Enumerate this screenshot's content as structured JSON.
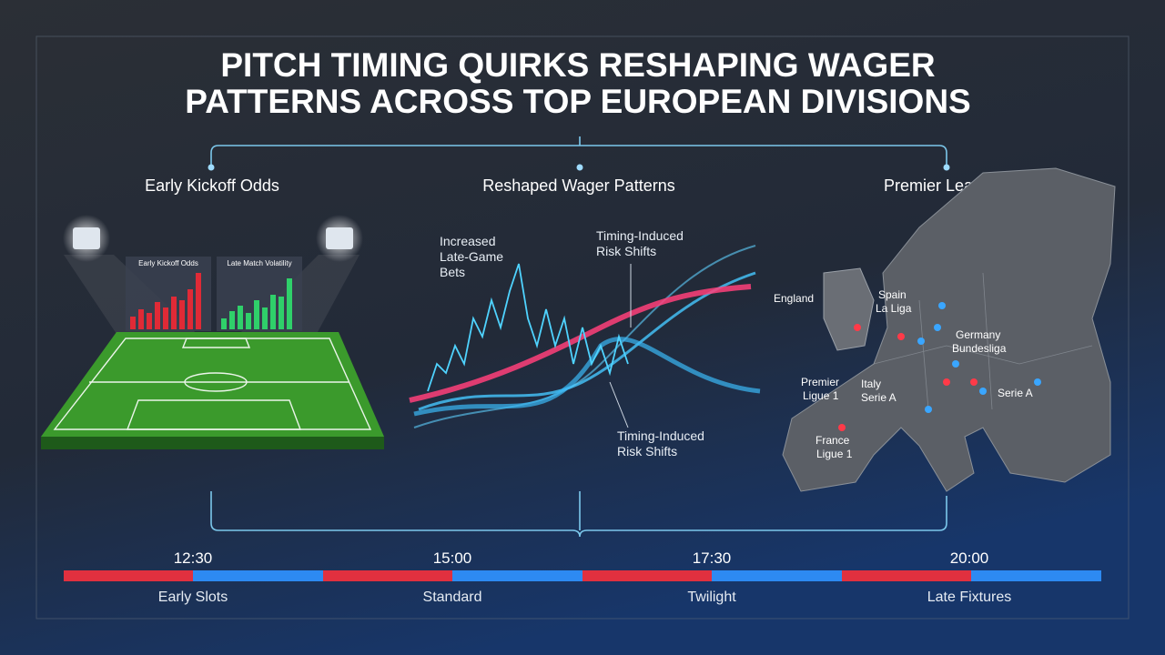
{
  "header": {
    "title_lines": [
      "PITCH TIMING QUIRKS RESHAPING WAGER",
      "PATTERNS ACROSS TOP EUROPEAN DIVISIONS"
    ]
  },
  "panels": [
    {
      "heading": "Early Kickoff Odds",
      "screens": [
        "Early Kickoff Odds",
        "Late Match Volatility"
      ]
    },
    {
      "heading": "Reshaped Wager Patterns",
      "labels": [
        [
          "Increased",
          "Late-Game",
          "Bets"
        ],
        [
          "Timing-Induced",
          "Risk Shifts"
        ],
        [
          "Timing-Induced",
          "Risk Shifts"
        ]
      ]
    },
    {
      "heading": "Premier League",
      "labels": [
        [
          "England"
        ],
        [
          "Spain",
          "La Liga"
        ],
        [
          "Germany",
          "Bundesliga"
        ],
        [
          "Premier",
          "Ligue 1"
        ],
        [
          "Italy",
          "Serie A"
        ],
        [
          "Serie A"
        ],
        [
          "France",
          "Ligue 1"
        ]
      ]
    }
  ],
  "timeline": {
    "times": [
      "12:30",
      "15:00",
      "17:30",
      "20:00"
    ],
    "labels": [
      "Early Slots",
      "Standard",
      "Twilight",
      "Late Fixtures"
    ]
  }
}
